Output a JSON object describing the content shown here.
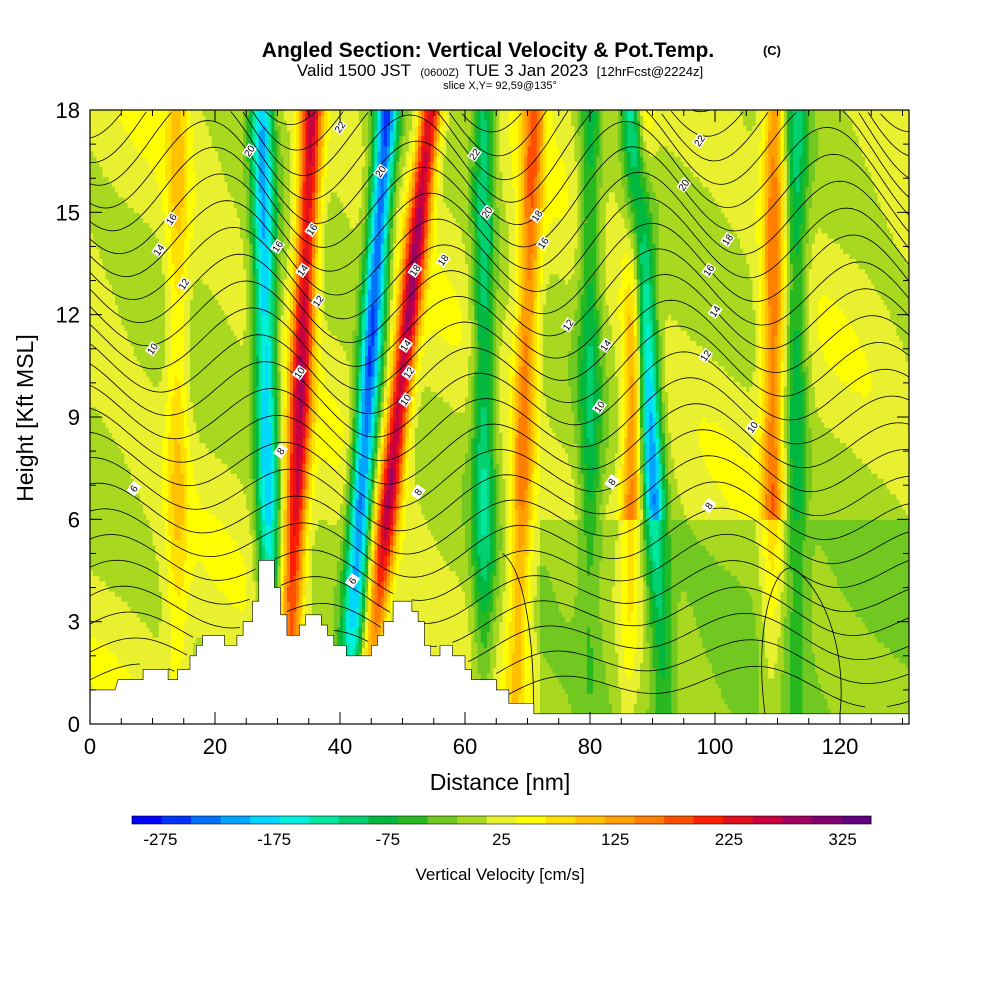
{
  "title": {
    "main": "Angled Section: Vertical Velocity & Pot.Temp.",
    "main_suffix": "(C)",
    "valid_prefix": "Valid 1500 JST",
    "valid_zulu": "(0600Z)",
    "valid_date": "TUE 3 Jan 2023",
    "forecast": "[12hrFcst@2224z]",
    "slice": "slice X,Y= 92,59@135°"
  },
  "chart_data": {
    "type": "heatmap",
    "xlabel": "Distance [nm]",
    "ylabel": "Height [Kft MSL]",
    "xlim": [
      0,
      131
    ],
    "ylim": [
      0,
      18
    ],
    "x_ticks": [
      0,
      20,
      40,
      60,
      80,
      100,
      120
    ],
    "y_ticks": [
      0,
      3,
      6,
      9,
      12,
      15,
      18
    ],
    "grid": false,
    "fill_variable": "Vertical Velocity",
    "fill_units": "cm/s",
    "colorbar": {
      "label": "Vertical Velocity [cm/s]",
      "ticks": [
        -275,
        -175,
        -75,
        25,
        125,
        225,
        325
      ],
      "range": [
        -300,
        350
      ],
      "colors": [
        "#0000ff",
        "#0033ff",
        "#0070ff",
        "#00a5ff",
        "#00d7ff",
        "#00f0e0",
        "#00e8a0",
        "#00d070",
        "#00b840",
        "#28b820",
        "#70c820",
        "#a8d820",
        "#e8f030",
        "#ffff00",
        "#ffe000",
        "#ffc000",
        "#ffa000",
        "#ff8000",
        "#ff5000",
        "#ff2000",
        "#e01020",
        "#c80040",
        "#a00060",
        "#800070",
        "#600080"
      ],
      "placement": "bottom"
    },
    "updraft_bands": [
      {
        "x_bottom": 31.5,
        "x_top": 35.5,
        "w_max": 240
      },
      {
        "x_bottom": 44.0,
        "x_top": 54.5,
        "w_max": 250
      },
      {
        "x_bottom": 68.0,
        "x_top": 71.0,
        "w_max": 140
      },
      {
        "x_bottom": 86.0,
        "x_top": 88.0,
        "w_max": 150
      },
      {
        "x_bottom": 109.0,
        "x_top": 109.5,
        "w_max": 140
      },
      {
        "x_bottom": 14.0,
        "x_top": 14.0,
        "w_max": 70
      }
    ],
    "downdraft_bands": [
      {
        "x_bottom": 29.0,
        "x_top": 27.5,
        "w_min": -200
      },
      {
        "x_bottom": 41.0,
        "x_top": 47.5,
        "w_min": -260
      },
      {
        "x_bottom": 63.0,
        "x_top": 63.0,
        "w_min": -120
      },
      {
        "x_bottom": 92.0,
        "x_top": 87.0,
        "w_min": -230
      },
      {
        "x_bottom": 80.0,
        "x_top": 80.0,
        "w_min": -90
      },
      {
        "x_bottom": 113.0,
        "x_top": 113.0,
        "w_min": -100
      }
    ],
    "isentropes": {
      "variable": "Potential Temperature",
      "units": "C",
      "interval": 1,
      "labels": [
        {
          "x": 7,
          "y": 6.9,
          "text": "6"
        },
        {
          "x": 10,
          "y": 11.0,
          "text": "10"
        },
        {
          "x": 15,
          "y": 12.9,
          "text": "12"
        },
        {
          "x": 11,
          "y": 13.9,
          "text": "14"
        },
        {
          "x": 13,
          "y": 14.8,
          "text": "16"
        },
        {
          "x": 25.5,
          "y": 16.8,
          "text": "20"
        },
        {
          "x": 30.5,
          "y": 8.0,
          "text": "8"
        },
        {
          "x": 33.5,
          "y": 10.3,
          "text": "10"
        },
        {
          "x": 36.5,
          "y": 12.4,
          "text": "12"
        },
        {
          "x": 34,
          "y": 13.3,
          "text": "14"
        },
        {
          "x": 30,
          "y": 14.0,
          "text": "16"
        },
        {
          "x": 35.5,
          "y": 14.5,
          "text": "16"
        },
        {
          "x": 40,
          "y": 17.5,
          "text": "22"
        },
        {
          "x": 42,
          "y": 4.2,
          "text": "6"
        },
        {
          "x": 50.5,
          "y": 9.5,
          "text": "10"
        },
        {
          "x": 51,
          "y": 10.3,
          "text": "12"
        },
        {
          "x": 50.5,
          "y": 11.1,
          "text": "14"
        },
        {
          "x": 52,
          "y": 13.3,
          "text": "18"
        },
        {
          "x": 56.5,
          "y": 13.6,
          "text": "18"
        },
        {
          "x": 46.5,
          "y": 16.2,
          "text": "20"
        },
        {
          "x": 52.5,
          "y": 6.8,
          "text": "8"
        },
        {
          "x": 63.5,
          "y": 15.0,
          "text": "20"
        },
        {
          "x": 61.5,
          "y": 16.7,
          "text": "22"
        },
        {
          "x": 71.5,
          "y": 14.9,
          "text": "18"
        },
        {
          "x": 72.5,
          "y": 14.1,
          "text": "16"
        },
        {
          "x": 76.5,
          "y": 11.7,
          "text": "12"
        },
        {
          "x": 82.5,
          "y": 11.1,
          "text": "14"
        },
        {
          "x": 81.5,
          "y": 9.3,
          "text": "10"
        },
        {
          "x": 83.5,
          "y": 7.1,
          "text": "8"
        },
        {
          "x": 95,
          "y": 15.8,
          "text": "20"
        },
        {
          "x": 97.5,
          "y": 17.1,
          "text": "22"
        },
        {
          "x": 102,
          "y": 14.2,
          "text": "18"
        },
        {
          "x": 99,
          "y": 13.3,
          "text": "16"
        },
        {
          "x": 100,
          "y": 12.1,
          "text": "14"
        },
        {
          "x": 98.5,
          "y": 10.8,
          "text": "12"
        },
        {
          "x": 106,
          "y": 8.7,
          "text": "10"
        },
        {
          "x": 99,
          "y": 6.4,
          "text": "8"
        }
      ]
    },
    "terrain_top_kft": [
      [
        0,
        1.0
      ],
      [
        4,
        1.0
      ],
      [
        4.5,
        1.3
      ],
      [
        8.5,
        1.3
      ],
      [
        8.5,
        1.6
      ],
      [
        12.5,
        1.6
      ],
      [
        12.5,
        1.3
      ],
      [
        14,
        1.3
      ],
      [
        14,
        1.6
      ],
      [
        16,
        1.6
      ],
      [
        16,
        2.0
      ],
      [
        17,
        2.0
      ],
      [
        17,
        2.3
      ],
      [
        18,
        2.3
      ],
      [
        18,
        2.6
      ],
      [
        21.5,
        2.6
      ],
      [
        21.5,
        2.3
      ],
      [
        23.5,
        2.3
      ],
      [
        23.5,
        2.6
      ],
      [
        24.5,
        2.6
      ],
      [
        24.5,
        3.0
      ],
      [
        26,
        3.0
      ],
      [
        26,
        3.6
      ],
      [
        27,
        3.6
      ],
      [
        27,
        4.8
      ],
      [
        29.5,
        4.8
      ],
      [
        29.5,
        4.0
      ],
      [
        30.5,
        4.0
      ],
      [
        30.5,
        3.2
      ],
      [
        31.5,
        3.2
      ],
      [
        31.5,
        2.6
      ],
      [
        33.5,
        2.6
      ],
      [
        33.5,
        2.9
      ],
      [
        34.5,
        2.9
      ],
      [
        34.5,
        3.2
      ],
      [
        37,
        3.2
      ],
      [
        37,
        2.9
      ],
      [
        38,
        2.9
      ],
      [
        38,
        2.6
      ],
      [
        39,
        2.6
      ],
      [
        39,
        2.3
      ],
      [
        41,
        2.3
      ],
      [
        41,
        2.0
      ],
      [
        45,
        2.0
      ],
      [
        45,
        2.3
      ],
      [
        46,
        2.3
      ],
      [
        46,
        2.6
      ],
      [
        47,
        2.6
      ],
      [
        47,
        3.0
      ],
      [
        48.5,
        3.0
      ],
      [
        48.5,
        3.6
      ],
      [
        51.5,
        3.6
      ],
      [
        51.5,
        3.3
      ],
      [
        52.5,
        3.3
      ],
      [
        52.5,
        3.0
      ],
      [
        53.5,
        3.0
      ],
      [
        53.5,
        2.3
      ],
      [
        54.5,
        2.3
      ],
      [
        54.5,
        2.0
      ],
      [
        56,
        2.0
      ],
      [
        56,
        2.3
      ],
      [
        58,
        2.3
      ],
      [
        58,
        2.0
      ],
      [
        60,
        2.0
      ],
      [
        60,
        1.6
      ],
      [
        61,
        1.6
      ],
      [
        61,
        1.3
      ],
      [
        65,
        1.3
      ],
      [
        65,
        1.0
      ],
      [
        67,
        1.0
      ],
      [
        67,
        0.6
      ],
      [
        71,
        0.6
      ],
      [
        71,
        0.3
      ],
      [
        131,
        0.3
      ]
    ]
  }
}
